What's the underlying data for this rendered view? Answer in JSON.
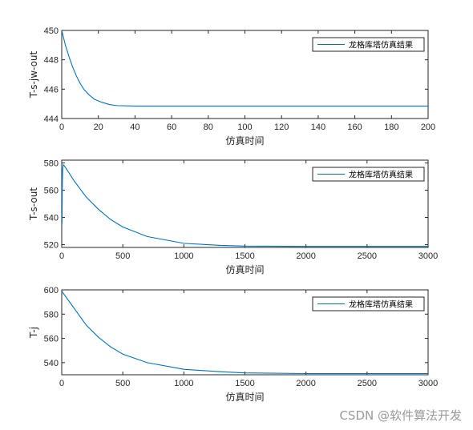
{
  "watermark": "CSDN @软件算法开发",
  "colors": {
    "series": "#0072bd",
    "axis": "#262626"
  },
  "chart_data": [
    {
      "type": "line",
      "xlabel": "仿真时间",
      "ylabel": "T-s-jw-out",
      "xlim": [
        0,
        200
      ],
      "ylim": [
        444,
        450
      ],
      "xticks": [
        0,
        20,
        40,
        60,
        80,
        100,
        120,
        140,
        160,
        180,
        200
      ],
      "yticks": [
        444,
        446,
        448,
        450
      ],
      "legend": "top-right",
      "series": [
        {
          "name": "龙格库塔仿真结果",
          "x": [
            0,
            2,
            4,
            6,
            8,
            10,
            12,
            15,
            18,
            22,
            26,
            30,
            40,
            60,
            100,
            200
          ],
          "y": [
            450.0,
            449.0,
            448.2,
            447.5,
            446.9,
            446.4,
            446.0,
            445.6,
            445.3,
            445.1,
            444.95,
            444.88,
            444.85,
            444.85,
            444.85,
            444.85
          ]
        }
      ]
    },
    {
      "type": "line",
      "xlabel": "仿真时间",
      "ylabel": "T-s-out",
      "xlim": [
        0,
        3000
      ],
      "ylim": [
        518,
        582
      ],
      "xticks": [
        0,
        500,
        1000,
        1500,
        2000,
        2500,
        3000
      ],
      "yticks": [
        520,
        540,
        560,
        580
      ],
      "legend": "top-right",
      "series": [
        {
          "name": "龙格库塔仿真结果",
          "x": [
            0,
            1,
            2,
            3,
            5,
            8,
            12,
            20,
            50,
            100,
            200,
            300,
            400,
            500,
            700,
            1000,
            1300,
            1500,
            2000,
            3000
          ],
          "y": [
            578,
            545,
            535,
            545,
            565,
            576,
            578.5,
            578,
            574,
            567,
            555,
            546,
            538.5,
            533,
            526,
            521,
            519.5,
            519,
            518.8,
            518.8
          ]
        }
      ]
    },
    {
      "type": "line",
      "xlabel": "仿真时间",
      "ylabel": "T-j",
      "xlim": [
        0,
        3000
      ],
      "ylim": [
        530,
        600
      ],
      "xticks": [
        0,
        500,
        1000,
        1500,
        2000,
        2500,
        3000
      ],
      "yticks": [
        540,
        560,
        580,
        600
      ],
      "legend": "top-right",
      "series": [
        {
          "name": "龙格库塔仿真结果",
          "x": [
            0,
            100,
            200,
            300,
            400,
            500,
            700,
            1000,
            1300,
            1500,
            2000,
            3000
          ],
          "y": [
            599,
            585,
            571,
            561,
            553,
            547,
            540,
            534.5,
            532.5,
            531.5,
            531.0,
            531.0
          ]
        }
      ]
    }
  ]
}
